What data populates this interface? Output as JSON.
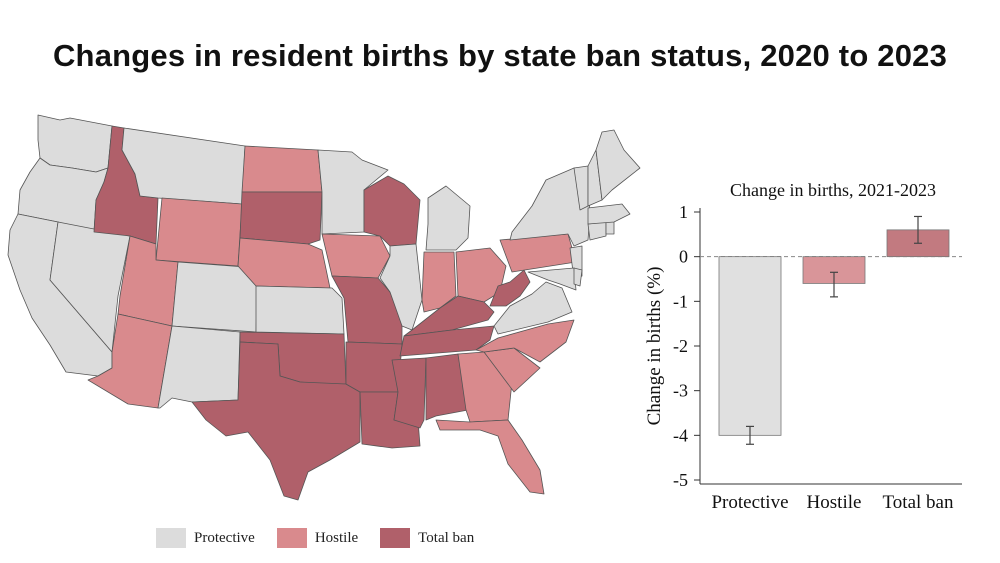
{
  "title": "Changes in resident births by state ban status, 2020 to 2023",
  "colors": {
    "protective": "#dcdcdc",
    "hostile": "#d98a8d",
    "total_ban": "#b0606a",
    "bar_protective": "#e0e0e0",
    "bar_hostile": "#d99599",
    "bar_total_ban": "#c27a80",
    "state_border": "#555555"
  },
  "legend": {
    "items": [
      {
        "label": "Protective",
        "color": "#dcdcdc"
      },
      {
        "label": "Hostile",
        "color": "#d98a8d"
      },
      {
        "label": "Total ban",
        "color": "#b0606a"
      }
    ]
  },
  "map": {
    "states": [
      {
        "name": "WA",
        "status": "protective"
      },
      {
        "name": "OR",
        "status": "protective"
      },
      {
        "name": "CA",
        "status": "protective"
      },
      {
        "name": "NV",
        "status": "protective"
      },
      {
        "name": "ID",
        "status": "total_ban"
      },
      {
        "name": "MT",
        "status": "protective"
      },
      {
        "name": "WY",
        "status": "hostile"
      },
      {
        "name": "UT",
        "status": "hostile"
      },
      {
        "name": "AZ",
        "status": "hostile"
      },
      {
        "name": "CO",
        "status": "protective"
      },
      {
        "name": "NM",
        "status": "protective"
      },
      {
        "name": "ND",
        "status": "hostile"
      },
      {
        "name": "SD",
        "status": "total_ban"
      },
      {
        "name": "NE",
        "status": "hostile"
      },
      {
        "name": "KS",
        "status": "protective"
      },
      {
        "name": "OK",
        "status": "total_ban"
      },
      {
        "name": "TX",
        "status": "total_ban"
      },
      {
        "name": "MN",
        "status": "protective"
      },
      {
        "name": "IA",
        "status": "hostile"
      },
      {
        "name": "MO",
        "status": "total_ban"
      },
      {
        "name": "AR",
        "status": "total_ban"
      },
      {
        "name": "LA",
        "status": "total_ban"
      },
      {
        "name": "WI",
        "status": "total_ban"
      },
      {
        "name": "IL",
        "status": "protective"
      },
      {
        "name": "MI",
        "status": "protective"
      },
      {
        "name": "IN",
        "status": "hostile"
      },
      {
        "name": "OH",
        "status": "hostile"
      },
      {
        "name": "KY",
        "status": "total_ban"
      },
      {
        "name": "TN",
        "status": "total_ban"
      },
      {
        "name": "MS",
        "status": "total_ban"
      },
      {
        "name": "AL",
        "status": "total_ban"
      },
      {
        "name": "GA",
        "status": "hostile"
      },
      {
        "name": "FL",
        "status": "hostile"
      },
      {
        "name": "SC",
        "status": "hostile"
      },
      {
        "name": "NC",
        "status": "hostile"
      },
      {
        "name": "VA",
        "status": "protective"
      },
      {
        "name": "WV",
        "status": "total_ban"
      },
      {
        "name": "PA",
        "status": "hostile"
      },
      {
        "name": "NY",
        "status": "protective"
      },
      {
        "name": "NJ",
        "status": "protective"
      },
      {
        "name": "MD",
        "status": "protective"
      },
      {
        "name": "DE",
        "status": "protective"
      },
      {
        "name": "CT",
        "status": "protective"
      },
      {
        "name": "RI",
        "status": "protective"
      },
      {
        "name": "MA",
        "status": "protective"
      },
      {
        "name": "VT",
        "status": "protective"
      },
      {
        "name": "NH",
        "status": "protective"
      },
      {
        "name": "ME",
        "status": "protective"
      }
    ]
  },
  "chart_data": {
    "type": "bar",
    "title": "Change in births, 2021-2023",
    "xlabel": "",
    "ylabel": "Change in births (%)",
    "categories": [
      "Protective",
      "Hostile",
      "Total ban"
    ],
    "values": [
      -4.0,
      -0.6,
      0.6
    ],
    "error_low": [
      -4.2,
      -0.9,
      0.3
    ],
    "error_high": [
      -3.8,
      -0.35,
      0.9
    ],
    "ylim": [
      -5,
      1
    ],
    "yticks": [
      1,
      0,
      -1,
      -2,
      -3,
      -4,
      -5
    ],
    "reference_line": 0,
    "grid": false
  }
}
